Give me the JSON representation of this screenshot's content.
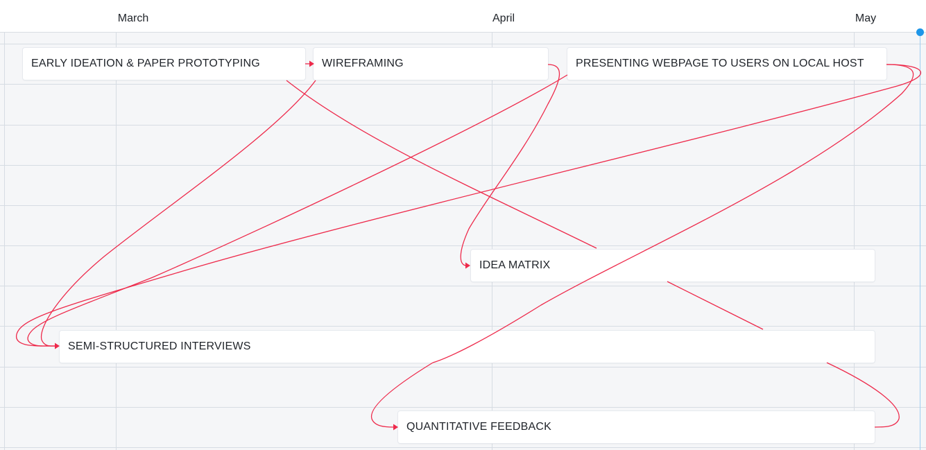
{
  "timeline": {
    "months": [
      {
        "label": "March"
      },
      {
        "label": "April"
      },
      {
        "label": "May"
      }
    ]
  },
  "tasks": [
    {
      "id": "early",
      "label": "EARLY IDEATION & PAPER PROTOTYPING"
    },
    {
      "id": "wire",
      "label": "WIREFRAMING"
    },
    {
      "id": "present",
      "label": "PRESENTING WEBPAGE TO USERS ON LOCAL HOST"
    },
    {
      "id": "matrix",
      "label": "IDEA MATRIX"
    },
    {
      "id": "interviews",
      "label": "SEMI-STRUCTURED INTERVIEWS"
    },
    {
      "id": "quant",
      "label": "QUANTITATIVE FEEDBACK"
    }
  ],
  "dependencies": [
    {
      "from": "early",
      "to": "wire"
    },
    {
      "from": "wire",
      "to": "matrix"
    },
    {
      "from": "wire",
      "to": "interviews"
    },
    {
      "from": "present",
      "to": "interviews"
    },
    {
      "from": "present",
      "to": "interviews"
    },
    {
      "from": "present",
      "to": "quant"
    },
    {
      "from": "early",
      "to": "quant"
    }
  ],
  "colors": {
    "dependency": "#ee2a4b",
    "today_marker": "#1e96e8",
    "grid": "#d6dce3",
    "background": "#f5f6f8"
  }
}
